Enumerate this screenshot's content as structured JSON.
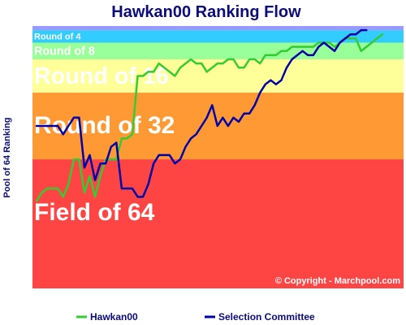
{
  "chart_data": {
    "type": "line",
    "title": "Hawkan00 Ranking Flow",
    "ylabel": "Pool of 64 Ranking",
    "copyright": "© Copyright - Marchpool.com",
    "ylim": [
      64,
      1
    ],
    "grid": false,
    "legend_position": "bottom",
    "bands": [
      {
        "label": "Field of 64",
        "from": 64,
        "to": 33,
        "color": "#ff4444"
      },
      {
        "label": "Round of 32",
        "from": 33,
        "to": 17,
        "color": "#ff9933"
      },
      {
        "label": "Round of 16",
        "from": 17,
        "to": 9,
        "color": "#ffff99"
      },
      {
        "label": "Round of 8",
        "from": 9,
        "to": 5,
        "color": "#99ff99"
      },
      {
        "label": "Round of 4",
        "from": 5,
        "to": 2,
        "color": "#33ccff"
      },
      {
        "label": "",
        "from": 2,
        "to": 1,
        "color": "#9999ff"
      }
    ],
    "series": [
      {
        "name": "Hawkan00",
        "color": "#33cc33",
        "values": [
          43,
          41,
          40,
          40,
          40,
          42,
          39,
          33,
          33,
          41,
          37,
          42,
          37,
          33,
          33,
          33,
          28,
          28,
          27,
          13,
          13,
          12,
          12,
          10,
          11,
          12,
          13,
          11,
          10,
          9,
          10,
          10,
          12,
          11,
          10,
          10,
          9,
          9,
          11,
          11,
          9,
          9,
          10,
          8,
          8,
          8,
          7,
          7,
          6,
          6,
          6,
          6,
          6,
          5,
          5,
          5,
          6,
          5,
          4,
          4,
          4,
          7,
          6,
          5,
          4,
          3
        ]
      },
      {
        "name": "Selection Committee",
        "color": "#0000aa",
        "values": [
          25,
          25,
          25,
          25,
          25,
          27,
          25,
          23,
          23,
          35,
          32,
          38,
          34,
          34,
          30,
          29,
          40,
          40,
          40,
          42,
          42,
          39,
          34,
          32,
          32,
          32,
          34,
          33,
          30,
          28,
          27,
          25,
          23,
          20,
          25,
          23,
          25,
          23,
          24,
          22,
          22,
          20,
          17,
          15,
          14,
          15,
          14,
          11,
          9,
          8,
          7,
          8,
          8,
          6,
          5,
          6,
          7,
          5,
          4,
          3,
          3,
          2,
          2
        ]
      }
    ]
  }
}
